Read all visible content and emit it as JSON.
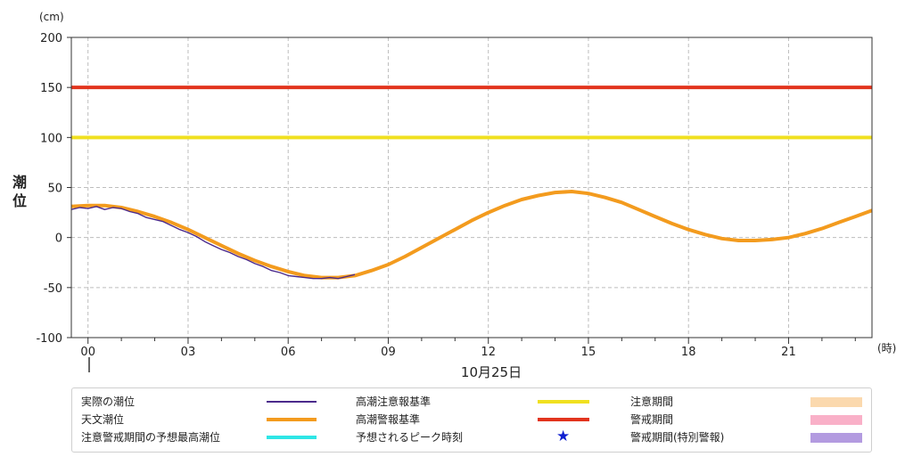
{
  "colors": {
    "observed": "#4b2a8c",
    "astronomical": "#f39b1e",
    "forecast_peak": "#2fe6e6",
    "caution_level": "#f0e020",
    "warning_level": "#e2341d",
    "caution_period": "#fbd9ae",
    "warning_period": "#f9b0c8",
    "special_warning_period": "#b39be0",
    "star": "#1020d0",
    "grid": "#bdbdbd"
  },
  "chart_data": {
    "type": "line",
    "unit_label": "(cm)",
    "ylabel": "潮位",
    "xlabel_unit": "(時)",
    "date_label": "10月25日",
    "ylim": [
      -100,
      200
    ],
    "yticks": [
      -100,
      -50,
      0,
      50,
      100,
      150,
      200
    ],
    "xlim": [
      -0.5,
      23.5
    ],
    "xticks": [
      0,
      3,
      6,
      9,
      12,
      15,
      18,
      21
    ],
    "xtick_labels": [
      "00",
      "03",
      "06",
      "09",
      "12",
      "15",
      "18",
      "21"
    ],
    "grid": true,
    "thresholds": [
      {
        "name": "高潮注意報基準",
        "value": 100
      },
      {
        "name": "高潮警報基準",
        "value": 150
      }
    ],
    "series": [
      {
        "name": "天文潮位",
        "x": [
          -0.5,
          0,
          0.5,
          1,
          1.5,
          2,
          2.5,
          3,
          3.5,
          4,
          4.5,
          5,
          5.5,
          6,
          6.5,
          7,
          7.5,
          8,
          8.5,
          9,
          9.5,
          10,
          10.5,
          11,
          11.5,
          12,
          12.5,
          13,
          13.5,
          14,
          14.5,
          15,
          15.5,
          16,
          16.5,
          17,
          17.5,
          18,
          18.5,
          19,
          19.5,
          20,
          20.5,
          21,
          21.5,
          22,
          22.5,
          23,
          23.5
        ],
        "values": [
          31,
          32,
          32,
          30,
          26,
          21,
          15,
          8,
          0,
          -8,
          -16,
          -23,
          -29,
          -34,
          -38,
          -40,
          -40,
          -38,
          -33,
          -27,
          -19,
          -10,
          -1,
          8,
          17,
          25,
          32,
          38,
          42,
          45,
          46,
          44,
          40,
          35,
          28,
          21,
          14,
          8,
          3,
          -1,
          -3,
          -3,
          -2,
          0,
          4,
          9,
          15,
          21,
          27
        ]
      },
      {
        "name": "実際の潮位",
        "x": [
          -0.5,
          -0.25,
          0,
          0.25,
          0.5,
          0.75,
          1,
          1.25,
          1.5,
          1.75,
          2,
          2.25,
          2.5,
          2.75,
          3,
          3.25,
          3.5,
          3.75,
          4,
          4.25,
          4.5,
          4.75,
          5,
          5.25,
          5.5,
          5.75,
          6,
          6.25,
          6.5,
          6.75,
          7,
          7.25,
          7.5,
          7.75,
          8
        ],
        "values": [
          28,
          30,
          29,
          31,
          28,
          30,
          29,
          26,
          24,
          20,
          18,
          16,
          12,
          8,
          5,
          1,
          -4,
          -8,
          -12,
          -15,
          -19,
          -22,
          -26,
          -29,
          -33,
          -35,
          -38,
          -39,
          -40,
          -41,
          -41,
          -40,
          -41,
          -39,
          -37
        ]
      }
    ]
  },
  "legend": {
    "col1": [
      "実際の潮位",
      "天文潮位",
      "注意警戒期間の予想最高潮位"
    ],
    "col2": [
      "高潮注意報基準",
      "高潮警報基準",
      "予想されるピーク時刻"
    ],
    "col3": [
      "注意期間",
      "警戒期間",
      "警戒期間(特別警報)"
    ],
    "star_symbol": "★"
  }
}
